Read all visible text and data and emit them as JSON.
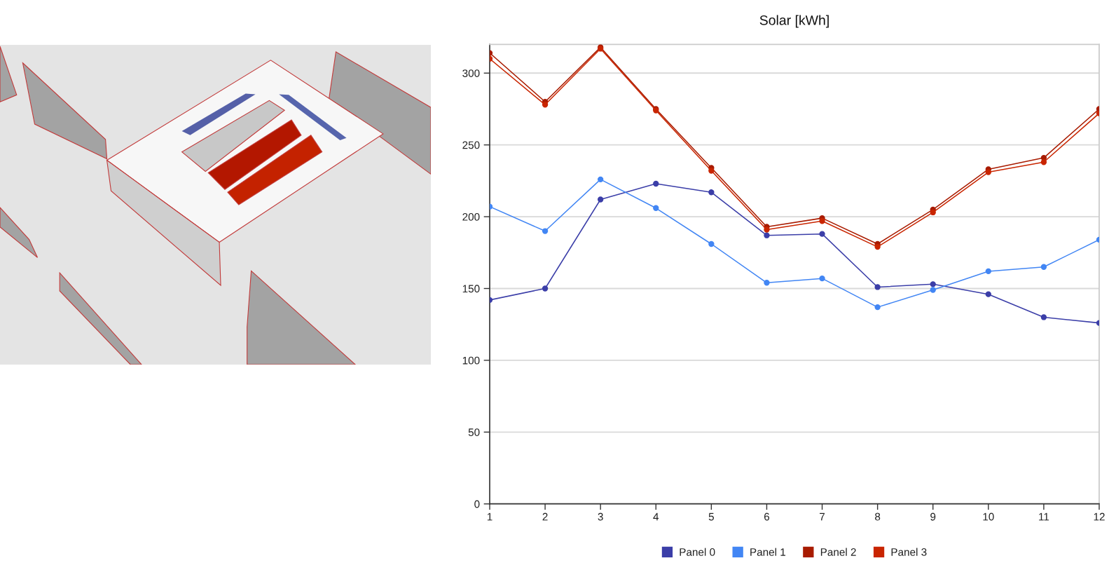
{
  "chart_data": {
    "type": "line",
    "title": "Solar [kWh]",
    "x": [
      1,
      2,
      3,
      4,
      5,
      6,
      7,
      8,
      9,
      10,
      11,
      12
    ],
    "series": [
      {
        "name": "Panel 0",
        "color": "#3b3ea8",
        "values": [
          142,
          150,
          212,
          223,
          217,
          187,
          188,
          151,
          153,
          146,
          130,
          126
        ]
      },
      {
        "name": "Panel 1",
        "color": "#4286f4",
        "values": [
          207,
          190,
          226,
          206,
          181,
          154,
          157,
          137,
          149,
          162,
          165,
          184
        ]
      },
      {
        "name": "Panel 2",
        "color": "#a81b00",
        "values": [
          314,
          280,
          318,
          275,
          234,
          193,
          199,
          181,
          205,
          233,
          241,
          275
        ]
      },
      {
        "name": "Panel 3",
        "color": "#c92500",
        "values": [
          310,
          278,
          317,
          274,
          232,
          191,
          197,
          179,
          203,
          231,
          238,
          272
        ]
      }
    ],
    "xlim": [
      1,
      12
    ],
    "xticks": [
      1,
      2,
      3,
      4,
      5,
      6,
      7,
      8,
      9,
      10,
      11,
      12
    ],
    "ylim": [
      0,
      320
    ],
    "yticks": [
      0,
      50,
      100,
      150,
      200,
      250,
      300
    ],
    "grid": "y",
    "legend": "bottom",
    "marker": "circle",
    "line_style": "solid"
  }
}
